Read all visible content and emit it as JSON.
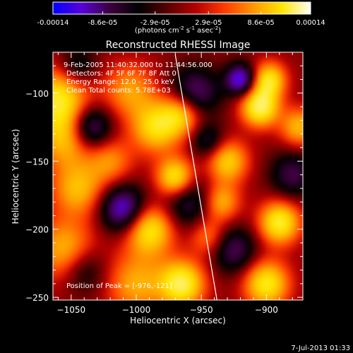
{
  "colorbar": {
    "tick_labels": [
      "-0.00014",
      "-8.6e-05",
      "-2.9e-05",
      "2.9e-05",
      "8.6e-05",
      "0.00014"
    ],
    "ticks": [
      -0.00014,
      -8.6e-05,
      -2.9e-05,
      2.9e-05,
      8.6e-05,
      0.00014
    ],
    "range": [
      -0.00014,
      0.00014
    ],
    "units_label": "(photons cm",
    "units_exp1": "-2",
    "units_mid": " s",
    "units_exp2": "-1",
    "units_end": " asec",
    "units_exp3": "-2",
    "units_close": ")",
    "colors": [
      "#0000ff",
      "#5a00d8",
      "#3c003c",
      "#000000",
      "#5a0000",
      "#b40000",
      "#ff3c00",
      "#ff9600",
      "#ffe600",
      "#ffffff"
    ]
  },
  "header": {
    "title": "Reconstructed RHESSI Image",
    "time_range": "9-Feb-2005 11:40:32.000 to 11:44:56.000",
    "detectors": "Detectors: 4F 5F 6F 7F 8F  Att 0",
    "energy": "Energy Range: 12.0 - 25.0 keV",
    "clean": "Clean     Total counts: 5.78E+03",
    "peak": "Position of Peak = [-976,-121]"
  },
  "footer": {
    "date": "7-Jul-2013 01:33"
  },
  "chart_data": {
    "type": "heatmap",
    "title": "Reconstructed RHESSI Image",
    "xlabel": "Heliocentric X (arcsec)",
    "ylabel": "Heliocentric Y (arcsec)",
    "xlim": [
      -1064,
      -872
    ],
    "ylim": [
      -252,
      -70
    ],
    "x_ticks": [
      -1050,
      -1000,
      -950,
      -900
    ],
    "x_tick_labels": [
      "−1050",
      "−1000",
      "−950",
      "−900"
    ],
    "y_ticks": [
      -100,
      -150,
      -200,
      -250
    ],
    "y_tick_labels": [
      "−100",
      "−150",
      "−200",
      "−250"
    ],
    "limb_line": [
      [
        -970,
        -72
      ],
      [
        -938,
        -252
      ]
    ],
    "peak_position": [
      -976,
      -121
    ],
    "blobs": [
      {
        "x": -1060,
        "y": -105,
        "v": 0.85,
        "s": 16
      },
      {
        "x": -1055,
        "y": -135,
        "v": 0.55,
        "s": 14
      },
      {
        "x": -1045,
        "y": -170,
        "v": 0.6,
        "s": 14
      },
      {
        "x": -1055,
        "y": -215,
        "v": 0.6,
        "s": 16
      },
      {
        "x": -1005,
        "y": -98,
        "v": 0.5,
        "s": 14
      },
      {
        "x": -985,
        "y": -125,
        "v": 0.75,
        "s": 13
      },
      {
        "x": -965,
        "y": -115,
        "v": 0.7,
        "s": 11
      },
      {
        "x": -1020,
        "y": -150,
        "v": 0.45,
        "s": 12
      },
      {
        "x": -970,
        "y": -162,
        "v": 0.9,
        "s": 10
      },
      {
        "x": -990,
        "y": -200,
        "v": 0.85,
        "s": 13
      },
      {
        "x": -1000,
        "y": -240,
        "v": 0.55,
        "s": 16
      },
      {
        "x": -965,
        "y": -240,
        "v": 0.95,
        "s": 12
      },
      {
        "x": -945,
        "y": -205,
        "v": 0.45,
        "s": 10
      },
      {
        "x": -930,
        "y": -150,
        "v": 0.7,
        "s": 11
      },
      {
        "x": -935,
        "y": -180,
        "v": 0.6,
        "s": 10
      },
      {
        "x": -905,
        "y": -110,
        "v": 1.0,
        "s": 10
      },
      {
        "x": -898,
        "y": -90,
        "v": 0.8,
        "s": 9
      },
      {
        "x": -890,
        "y": -195,
        "v": 0.9,
        "s": 11
      },
      {
        "x": -900,
        "y": -240,
        "v": 0.85,
        "s": 12
      },
      {
        "x": -875,
        "y": -125,
        "v": 0.6,
        "s": 10
      },
      {
        "x": -1035,
        "y": -125,
        "v": -0.7,
        "s": 11
      },
      {
        "x": -1010,
        "y": -185,
        "v": -0.85,
        "s": 12
      },
      {
        "x": -955,
        "y": -100,
        "v": -0.65,
        "s": 13
      },
      {
        "x": -920,
        "y": -90,
        "v": -0.9,
        "s": 8
      },
      {
        "x": -925,
        "y": -215,
        "v": -0.55,
        "s": 12
      },
      {
        "x": -960,
        "y": -180,
        "v": -0.5,
        "s": 14
      },
      {
        "x": -1040,
        "y": -230,
        "v": -0.4,
        "s": 12
      },
      {
        "x": -880,
        "y": -160,
        "v": -0.5,
        "s": 12
      },
      {
        "x": -1045,
        "y": -80,
        "v": -0.4,
        "s": 10
      },
      {
        "x": -945,
        "y": -135,
        "v": -0.45,
        "s": 9
      }
    ]
  }
}
